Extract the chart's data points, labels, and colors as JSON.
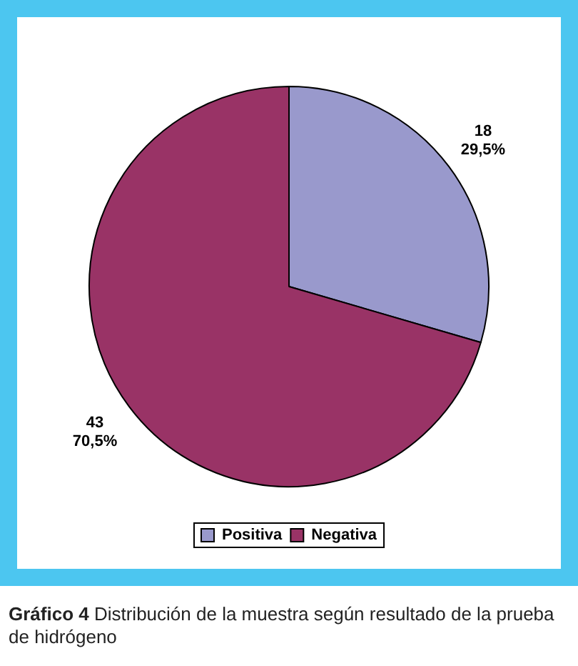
{
  "chart_data": {
    "type": "pie",
    "categories": [
      "Positiva",
      "Negativa"
    ],
    "values": [
      18,
      43
    ],
    "colors": [
      "#9999cc",
      "#993366"
    ],
    "value_labels": [
      "18\n29,5%",
      "43\n70,5%"
    ],
    "legend": "bottom",
    "annotations": [
      "Gráfico 4",
      "Distribución de la muestra según resultado de la prueba de hidrógeno"
    ]
  }
}
